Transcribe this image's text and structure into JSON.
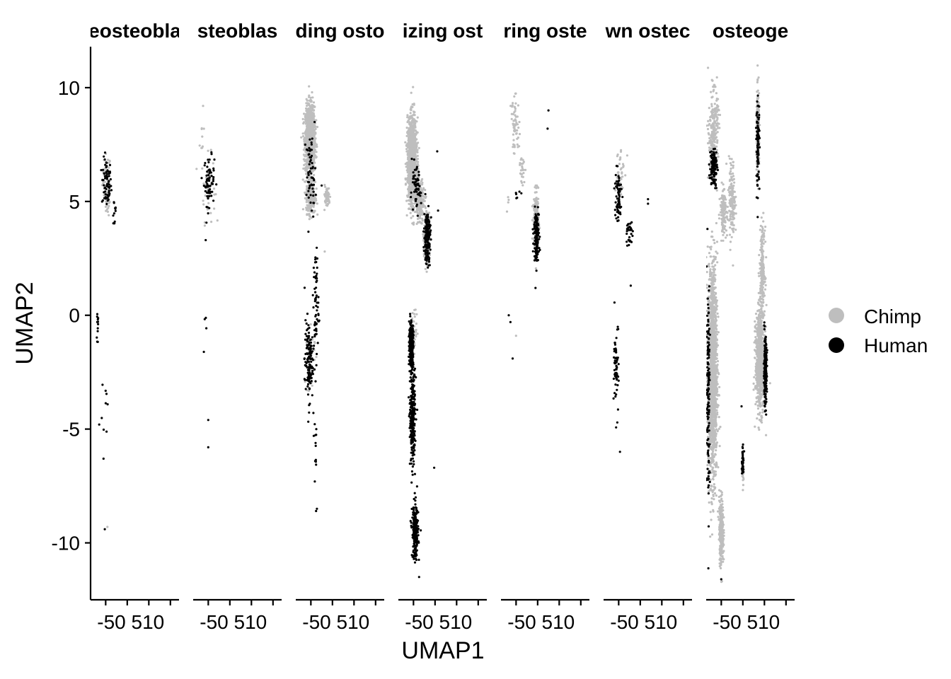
{
  "chart_data": {
    "type": "scatter",
    "xlabel": "UMAP1",
    "ylabel": "UMAP2",
    "ylim": [
      -12.5,
      11.8
    ],
    "yticks": [
      10,
      5,
      0,
      -5,
      -10
    ],
    "ytick_labels": [
      "10",
      "5",
      "0",
      "-5",
      "-10"
    ],
    "xlim": [
      -8.5,
      12
    ],
    "xticks": [
      -5,
      0,
      5,
      10
    ],
    "xtick_text": "-50 510",
    "legend": {
      "position": "right",
      "entries": [
        {
          "name": "Chimp",
          "color": "#bebebe"
        },
        {
          "name": "Human",
          "color": "#000000"
        }
      ]
    },
    "panels": [
      {
        "label": "eosteobla",
        "clusters": [
          {
            "group": "Chimp",
            "x": -4.8,
            "y": 6.0,
            "sx": 0.8,
            "sy": 0.9,
            "n": 45
          },
          {
            "group": "Chimp",
            "x": -4.5,
            "y": 5.0,
            "sx": 0.5,
            "sy": 0.5,
            "n": 20
          },
          {
            "group": "Human",
            "x": -4.8,
            "y": 5.8,
            "sx": 0.9,
            "sy": 0.9,
            "n": 70
          },
          {
            "group": "Human",
            "x": -3.0,
            "y": 4.5,
            "sx": 0.4,
            "sy": 0.7,
            "n": 12
          },
          {
            "group": "Human",
            "x": -6.8,
            "y": -0.5,
            "sx": 0.3,
            "sy": 0.9,
            "n": 12
          },
          {
            "group": "Human",
            "x": -5.0,
            "y": -3.5,
            "sx": 0.7,
            "sy": 2.0,
            "n": 8
          }
        ],
        "points": [
          {
            "group": "Human",
            "x": -5.2,
            "y": -9.4
          },
          {
            "group": "Chimp",
            "x": -4.6,
            "y": -9.3
          },
          {
            "group": "Human",
            "x": -5.5,
            "y": -6.3
          },
          {
            "group": "Human",
            "x": -6.5,
            "y": -4.8
          }
        ]
      },
      {
        "label": "steoblas",
        "clusters": [
          {
            "group": "Chimp",
            "x": -5.0,
            "y": 5.6,
            "sx": 1.3,
            "sy": 1.2,
            "n": 45
          },
          {
            "group": "Chimp",
            "x": -6.5,
            "y": 7.8,
            "sx": 0.4,
            "sy": 0.8,
            "n": 8
          },
          {
            "group": "Human",
            "x": -4.8,
            "y": 5.9,
            "sx": 1.0,
            "sy": 0.9,
            "n": 70
          },
          {
            "group": "Human",
            "x": -5.5,
            "y": -1.5,
            "sx": 0.6,
            "sy": 1.6,
            "n": 4
          }
        ],
        "points": [
          {
            "group": "Human",
            "x": -5.0,
            "y": -4.6
          },
          {
            "group": "Human",
            "x": -5.0,
            "y": -5.8
          },
          {
            "group": "Chimp",
            "x": -6.2,
            "y": 9.2
          },
          {
            "group": "Human",
            "x": -5.6,
            "y": 3.3
          }
        ]
      },
      {
        "label": "ding osto",
        "clusters": [
          {
            "group": "Chimp",
            "x": -5.2,
            "y": 7.7,
            "sx": 0.9,
            "sy": 1.2,
            "n": 1300
          },
          {
            "group": "Chimp",
            "x": -5.0,
            "y": 5.2,
            "sx": 0.9,
            "sy": 0.6,
            "n": 300
          },
          {
            "group": "Chimp",
            "x": -1.3,
            "y": 5.2,
            "sx": 0.6,
            "sy": 0.4,
            "n": 60
          },
          {
            "group": "Human",
            "x": -5.0,
            "y": 6.2,
            "sx": 0.9,
            "sy": 1.4,
            "n": 60
          },
          {
            "group": "Human",
            "x": -3.8,
            "y": 0.5,
            "sx": 0.5,
            "sy": 2.0,
            "n": 60
          },
          {
            "group": "Human",
            "x": -5.5,
            "y": -2.0,
            "sx": 0.8,
            "sy": 1.5,
            "n": 130
          },
          {
            "group": "Human",
            "x": -4.0,
            "y": -5.5,
            "sx": 0.4,
            "sy": 1.3,
            "n": 12
          },
          {
            "group": "Chimp",
            "x": -5.0,
            "y": -1.8,
            "sx": 0.8,
            "sy": 1.4,
            "n": 25
          }
        ],
        "points": [
          {
            "group": "Human",
            "x": -3.6,
            "y": -8.5
          },
          {
            "group": "Human",
            "x": -3.8,
            "y": -8.6
          },
          {
            "group": "Chimp",
            "x": -1.8,
            "y": 2.8
          },
          {
            "group": "Human",
            "x": -2.5,
            "y": 5.7
          }
        ]
      },
      {
        "label": "izing ost",
        "clusters": [
          {
            "group": "Chimp",
            "x": -5.3,
            "y": 6.8,
            "sx": 0.9,
            "sy": 1.5,
            "n": 1300
          },
          {
            "group": "Chimp",
            "x": -3.5,
            "y": 5.0,
            "sx": 0.9,
            "sy": 0.7,
            "n": 200
          },
          {
            "group": "Chimp",
            "x": -2.0,
            "y": 3.5,
            "sx": 0.6,
            "sy": 0.9,
            "n": 150
          },
          {
            "group": "Human",
            "x": -1.8,
            "y": 3.5,
            "sx": 0.6,
            "sy": 1.0,
            "n": 180
          },
          {
            "group": "Human",
            "x": -4.5,
            "y": 5.5,
            "sx": 1.0,
            "sy": 0.8,
            "n": 60
          },
          {
            "group": "Human",
            "x": -5.5,
            "y": -1.3,
            "sx": 0.4,
            "sy": 0.8,
            "n": 300
          },
          {
            "group": "Human",
            "x": -5.2,
            "y": -4.5,
            "sx": 0.5,
            "sy": 1.7,
            "n": 280
          },
          {
            "group": "Human",
            "x": -4.6,
            "y": -9.5,
            "sx": 0.6,
            "sy": 1.0,
            "n": 220
          },
          {
            "group": "Chimp",
            "x": -4.8,
            "y": -0.8,
            "sx": 0.6,
            "sy": 0.9,
            "n": 30
          }
        ],
        "points": [
          {
            "group": "Human",
            "x": 0.5,
            "y": 7.2
          },
          {
            "group": "Human",
            "x": 0.7,
            "y": 4.6
          },
          {
            "group": "Human",
            "x": -0.2,
            "y": -6.7
          },
          {
            "group": "Human",
            "x": -3.7,
            "y": -11.5
          }
        ]
      },
      {
        "label": "ring oste",
        "clusters": [
          {
            "group": "Chimp",
            "x": -5.2,
            "y": 8.3,
            "sx": 0.8,
            "sy": 1.0,
            "n": 60
          },
          {
            "group": "Chimp",
            "x": -3.5,
            "y": 6.5,
            "sx": 0.5,
            "sy": 0.6,
            "n": 25
          },
          {
            "group": "Chimp",
            "x": -0.3,
            "y": 4.0,
            "sx": 0.5,
            "sy": 1.1,
            "n": 260
          },
          {
            "group": "Chimp",
            "x": -6.8,
            "y": 5.0,
            "sx": 0.3,
            "sy": 0.4,
            "n": 4
          },
          {
            "group": "Human",
            "x": -0.3,
            "y": 3.5,
            "sx": 0.5,
            "sy": 0.9,
            "n": 130
          },
          {
            "group": "Human",
            "x": -4.5,
            "y": 5.3,
            "sx": 0.7,
            "sy": 0.5,
            "n": 6
          }
        ],
        "points": [
          {
            "group": "Human",
            "x": 2.5,
            "y": 9.0
          },
          {
            "group": "Human",
            "x": 2.3,
            "y": 8.2
          },
          {
            "group": "Human",
            "x": -6.7,
            "y": 0.0
          },
          {
            "group": "Human",
            "x": -6.3,
            "y": -0.3
          },
          {
            "group": "Chimp",
            "x": -5.0,
            "y": -0.9
          },
          {
            "group": "Human",
            "x": -5.8,
            "y": -1.9
          },
          {
            "group": "Human",
            "x": -0.5,
            "y": 1.2
          }
        ]
      },
      {
        "label": "wn ostec",
        "clusters": [
          {
            "group": "Chimp",
            "x": -4.8,
            "y": 6.3,
            "sx": 0.9,
            "sy": 1.0,
            "n": 40
          },
          {
            "group": "Human",
            "x": -5.2,
            "y": 5.2,
            "sx": 0.7,
            "sy": 1.0,
            "n": 70
          },
          {
            "group": "Human",
            "x": -2.5,
            "y": 3.6,
            "sx": 0.6,
            "sy": 0.6,
            "n": 30
          },
          {
            "group": "Human",
            "x": -5.5,
            "y": -2.3,
            "sx": 0.5,
            "sy": 1.6,
            "n": 60
          }
        ],
        "points": [
          {
            "group": "Human",
            "x": -4.7,
            "y": -6.0
          },
          {
            "group": "Human",
            "x": 1.8,
            "y": 5.1
          },
          {
            "group": "Human",
            "x": 1.8,
            "y": 4.9
          },
          {
            "group": "Human",
            "x": -2.2,
            "y": 1.3
          }
        ]
      },
      {
        "label": "osteoge",
        "clusters": [
          {
            "group": "Chimp",
            "x": -6.8,
            "y": 8.0,
            "sx": 0.9,
            "sy": 1.5,
            "n": 250
          },
          {
            "group": "Human",
            "x": -6.8,
            "y": 6.5,
            "sx": 0.7,
            "sy": 0.7,
            "n": 120
          },
          {
            "group": "Chimp",
            "x": -4.5,
            "y": 4.6,
            "sx": 0.6,
            "sy": 0.8,
            "n": 150
          },
          {
            "group": "Chimp",
            "x": -7.0,
            "y": -2.5,
            "sx": 0.9,
            "sy": 4.0,
            "n": 1500
          },
          {
            "group": "Chimp",
            "x": -5.0,
            "y": -9.5,
            "sx": 0.4,
            "sy": 1.2,
            "n": 300
          },
          {
            "group": "Chimp",
            "x": -2.5,
            "y": 5.0,
            "sx": 0.6,
            "sy": 1.5,
            "n": 150
          },
          {
            "group": "Chimp",
            "x": 3.5,
            "y": 8.0,
            "sx": 0.3,
            "sy": 1.5,
            "n": 200
          },
          {
            "group": "Chimp",
            "x": 4.5,
            "y": 2.0,
            "sx": 0.5,
            "sy": 1.5,
            "n": 200
          },
          {
            "group": "Chimp",
            "x": 4.0,
            "y": -2.0,
            "sx": 0.9,
            "sy": 1.8,
            "n": 700
          },
          {
            "group": "Human",
            "x": 5.2,
            "y": -2.5,
            "sx": 0.3,
            "sy": 1.2,
            "n": 200
          },
          {
            "group": "Human",
            "x": 3.5,
            "y": 7.5,
            "sx": 0.3,
            "sy": 1.6,
            "n": 90
          },
          {
            "group": "Human",
            "x": -8.0,
            "y": -3.0,
            "sx": 0.3,
            "sy": 4.0,
            "n": 140
          },
          {
            "group": "Human",
            "x": 0.0,
            "y": -6.5,
            "sx": 0.2,
            "sy": 0.5,
            "n": 50
          },
          {
            "group": "Chimp",
            "x": 0.0,
            "y": -6.8,
            "sx": 0.15,
            "sy": 0.5,
            "n": 30
          }
        ],
        "points": [
          {
            "group": "Human",
            "x": -5.0,
            "y": -11.6
          },
          {
            "group": "Human",
            "x": -0.3,
            "y": -4.0
          }
        ]
      }
    ]
  }
}
